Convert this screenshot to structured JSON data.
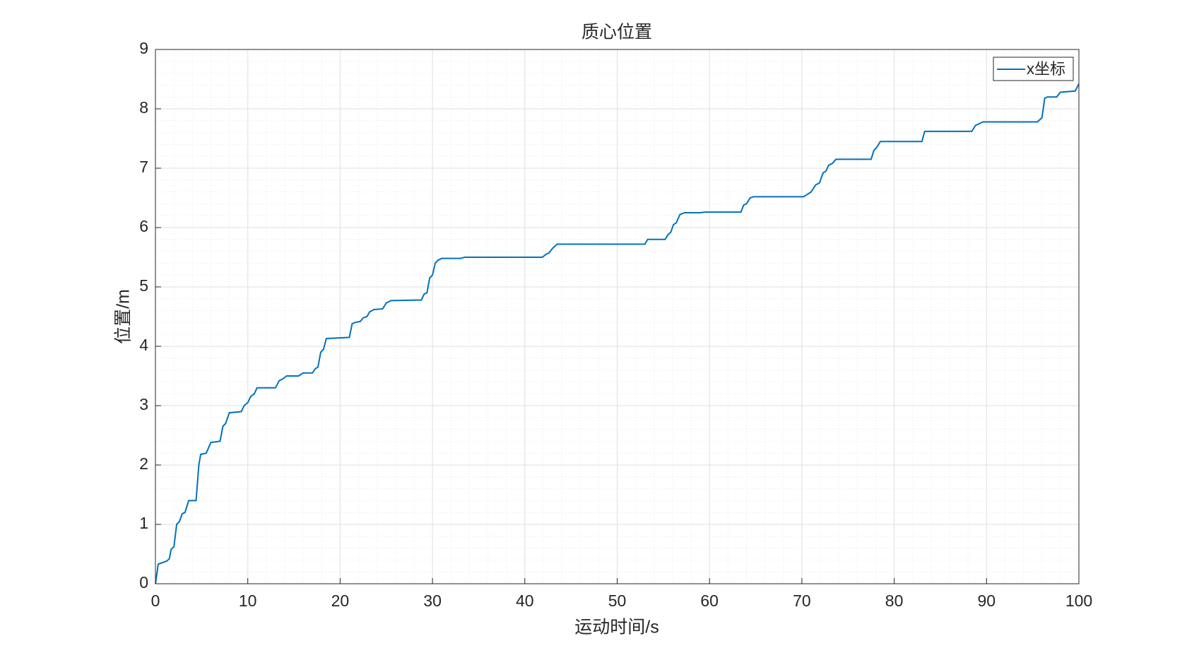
{
  "chart_data": {
    "type": "line",
    "title": "质心位置",
    "xlabel": "运动时间/s",
    "ylabel": "位置/m",
    "xlim": [
      0,
      100
    ],
    "ylim": [
      0,
      9
    ],
    "xticks": [
      0,
      10,
      20,
      30,
      40,
      50,
      60,
      70,
      80,
      90,
      100
    ],
    "yticks": [
      0,
      1,
      2,
      3,
      4,
      5,
      6,
      7,
      8,
      9
    ],
    "grid": true,
    "minor_grid": true,
    "legend": "upper right",
    "x": [
      0,
      0.3,
      1.2,
      1.5,
      1.7,
      2.0,
      2.3,
      2.6,
      2.9,
      3.2,
      3.6,
      4.4,
      4.7,
      4.9,
      5.5,
      6.0,
      7.0,
      7.3,
      7.6,
      8.0,
      9.3,
      9.6,
      10.0,
      10.3,
      10.7,
      11.0,
      13.0,
      13.4,
      13.8,
      14.2,
      15.5,
      16.0,
      17.0,
      17.3,
      17.6,
      17.9,
      18.2,
      18.5,
      21.0,
      21.3,
      21.6,
      22.2,
      22.5,
      22.9,
      23.2,
      23.7,
      24.6,
      25.0,
      25.5,
      28.8,
      29.1,
      29.4,
      29.7,
      30.0,
      30.3,
      30.6,
      31.0,
      33.0,
      33.5,
      41.9,
      42.3,
      42.6,
      43.0,
      43.5,
      53.0,
      53.3,
      55.2,
      55.5,
      55.8,
      56.1,
      56.4,
      56.8,
      57.3,
      59.0,
      59.5,
      63.4,
      63.7,
      64.0,
      64.4,
      64.8,
      70.2,
      70.5,
      71.0,
      71.5,
      71.9,
      72.3,
      72.6,
      72.9,
      73.3,
      73.7,
      77.5,
      77.8,
      78.1,
      78.5,
      83.0,
      83.3,
      88.4,
      88.8,
      89.2,
      89.6,
      95.5,
      96.0,
      96.3,
      96.6,
      97.6,
      98.0,
      99.6,
      100
    ],
    "series": [
      {
        "name": "x坐标",
        "color": "#0072BD",
        "values": [
          0,
          0.33,
          0.38,
          0.42,
          0.58,
          0.62,
          1.0,
          1.05,
          1.18,
          1.2,
          1.4,
          1.4,
          2.0,
          2.18,
          2.2,
          2.38,
          2.4,
          2.65,
          2.7,
          2.88,
          2.9,
          3.0,
          3.05,
          3.15,
          3.2,
          3.3,
          3.3,
          3.42,
          3.45,
          3.5,
          3.5,
          3.55,
          3.55,
          3.62,
          3.65,
          3.9,
          3.95,
          4.13,
          4.15,
          4.38,
          4.4,
          4.42,
          4.48,
          4.5,
          4.58,
          4.62,
          4.63,
          4.73,
          4.77,
          4.78,
          4.88,
          4.9,
          5.15,
          5.2,
          5.4,
          5.45,
          5.48,
          5.48,
          5.5,
          5.5,
          5.55,
          5.57,
          5.65,
          5.72,
          5.72,
          5.8,
          5.8,
          5.88,
          5.92,
          6.05,
          6.08,
          6.22,
          6.25,
          6.25,
          6.26,
          6.26,
          6.38,
          6.4,
          6.5,
          6.52,
          6.52,
          6.55,
          6.6,
          6.72,
          6.75,
          6.92,
          6.95,
          7.05,
          7.08,
          7.15,
          7.15,
          7.3,
          7.35,
          7.45,
          7.45,
          7.62,
          7.62,
          7.72,
          7.75,
          7.78,
          7.78,
          7.85,
          8.18,
          8.2,
          8.2,
          8.28,
          8.3,
          8.42
        ]
      }
    ]
  }
}
